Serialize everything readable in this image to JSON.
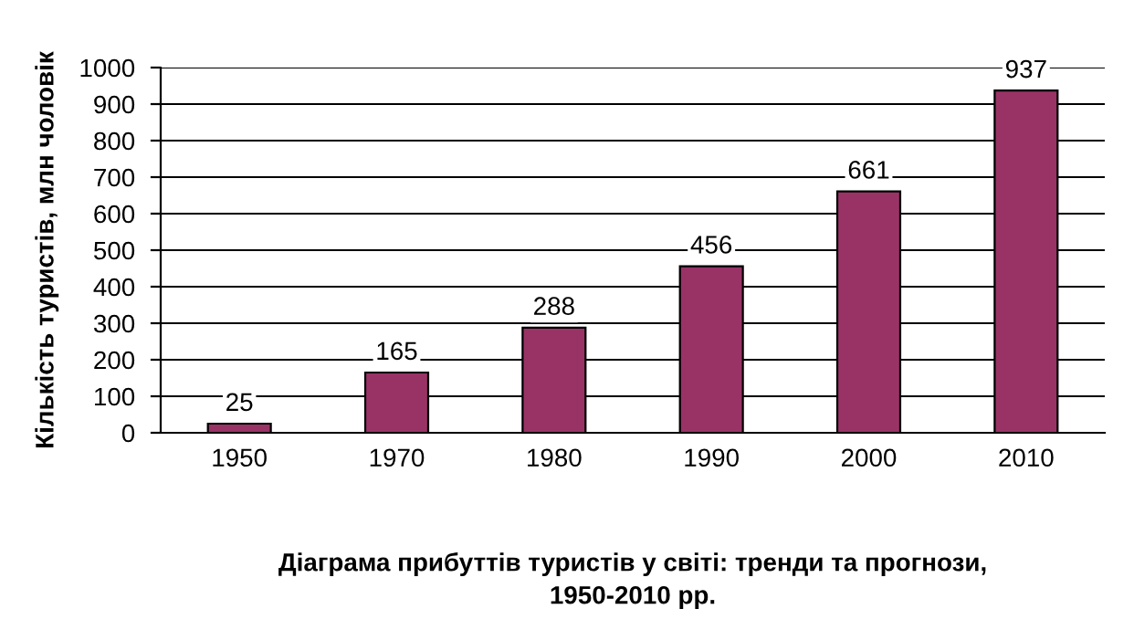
{
  "chart_data": {
    "type": "bar",
    "title": "Діаграма прибуттів туристів у світі: тренди та прогнози,\n1950-2010 рр.",
    "ylabel": "Кількість туристів, млн чоловік",
    "categories": [
      "1950",
      "1970",
      "1980",
      "1990",
      "2000",
      "2010"
    ],
    "values": [
      25,
      165,
      288,
      456,
      661,
      937
    ],
    "color": "#993366",
    "ylim": [
      0,
      1000
    ],
    "yticks": [
      0,
      100,
      200,
      300,
      400,
      500,
      600,
      700,
      800,
      900,
      1000
    ],
    "grid": "y",
    "data_labels": true
  }
}
